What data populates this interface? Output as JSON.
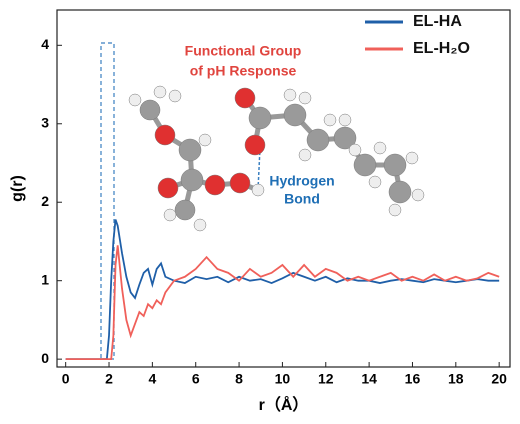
{
  "chart_data": {
    "type": "line",
    "xlabel": "r（Å）",
    "ylabel": "g(r)",
    "x": [
      0,
      1,
      1.9,
      2.0,
      2.1,
      2.2,
      2.3,
      2.4,
      2.6,
      2.8,
      3.0,
      3.2,
      3.4,
      3.6,
      3.8,
      4.0,
      4.2,
      4.4,
      4.6,
      5,
      5.5,
      6,
      6.5,
      7,
      7.5,
      8,
      8.5,
      9,
      9.5,
      10,
      10.5,
      11,
      11.5,
      12,
      12.5,
      13,
      13.5,
      14,
      14.5,
      15,
      15.5,
      16,
      16.5,
      17,
      17.5,
      18,
      18.5,
      19,
      19.5,
      20
    ],
    "series": [
      {
        "name": "EL-HA",
        "color": "#1f5fa8",
        "values": [
          0,
          0,
          0,
          0.3,
          1.0,
          1.5,
          1.78,
          1.7,
          1.35,
          1.05,
          0.85,
          0.78,
          0.95,
          1.1,
          1.15,
          0.95,
          1.15,
          1.22,
          1.05,
          1.0,
          0.97,
          1.05,
          1.02,
          1.05,
          0.98,
          1.05,
          1.0,
          1.02,
          0.97,
          1.03,
          1.1,
          1.05,
          1.0,
          1.05,
          0.98,
          1.03,
          1.0,
          1.0,
          0.97,
          1.0,
          1.02,
          1.0,
          0.98,
          1.02,
          1.0,
          0.98,
          1.0,
          1.02,
          1.0,
          1.0
        ]
      },
      {
        "name": "EL-H₂O",
        "color": "#f0605a",
        "values": [
          0,
          0,
          0,
          0,
          0,
          0.3,
          1.2,
          1.45,
          0.9,
          0.5,
          0.3,
          0.45,
          0.6,
          0.55,
          0.7,
          0.65,
          0.75,
          0.7,
          0.85,
          1.0,
          1.05,
          1.15,
          1.3,
          1.15,
          1.1,
          1.0,
          1.15,
          1.05,
          1.1,
          1.2,
          1.05,
          1.2,
          1.05,
          1.15,
          1.1,
          1.0,
          1.05,
          1.0,
          1.05,
          1.1,
          1.0,
          1.05,
          1.0,
          1.08,
          1.0,
          1.05,
          1.0,
          1.03,
          1.1,
          1.05
        ]
      }
    ],
    "xlim": [
      -0.4,
      20.5
    ],
    "ylim": [
      -0.1,
      4.45
    ],
    "xticks": [
      0,
      2,
      4,
      6,
      8,
      10,
      12,
      14,
      16,
      18,
      20
    ],
    "yticks": [
      0,
      1,
      2,
      3,
      4
    ],
    "legend": "upper right",
    "annotations": [
      {
        "text": "Functional Group",
        "color": "#e0443e"
      },
      {
        "text": "of pH Response",
        "color": "#e0443e"
      },
      {
        "text": "Hydrogen",
        "color": "#1f6fb5"
      },
      {
        "text": "Bond",
        "color": "#1f6fb5"
      }
    ]
  }
}
